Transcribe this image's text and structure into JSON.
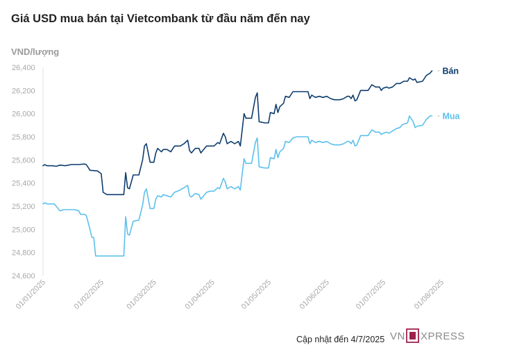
{
  "title": "Giá USD mua bán tại Vietcombank từ đầu năm đến nay",
  "unit_label": "VND/lượng",
  "footer": {
    "updated": "Cập nhật đến 4/7/2025",
    "brand": "VNEXPRESS"
  },
  "colors": {
    "ban": "#0d3c6e",
    "mua": "#5bc0ec",
    "tick_text": "#a8a8a8",
    "logo_accent": "#9f224e"
  },
  "chart_data": {
    "type": "line",
    "ylim": [
      24600,
      26400
    ],
    "yticks": [
      24600,
      24800,
      25000,
      25200,
      25400,
      25600,
      25800,
      26000,
      26200,
      26400
    ],
    "ytick_labels": [
      "24,600",
      "24,800",
      "25,000",
      "25,200",
      "25,400",
      "25,600",
      "25,800",
      "26,000",
      "26,200",
      "26,400"
    ],
    "xticks": [
      "01/01/2025",
      "01/02/2025",
      "01/03/2025",
      "01/04/2025",
      "01/05/2025",
      "01/06/2025",
      "01/07/2025",
      "01/08/2025"
    ],
    "x_range": [
      "2025-01-01",
      "2025-08-01"
    ],
    "grid": false,
    "series": [
      {
        "name": "Bán",
        "points": [
          [
            "2025-01-01",
            25550
          ],
          [
            "2025-01-02",
            25560
          ],
          [
            "2025-01-03",
            25550
          ],
          [
            "2025-01-06",
            25550
          ],
          [
            "2025-01-08",
            25545
          ],
          [
            "2025-01-10",
            25555
          ],
          [
            "2025-01-13",
            25550
          ],
          [
            "2025-01-16",
            25560
          ],
          [
            "2025-01-20",
            25560
          ],
          [
            "2025-01-23",
            25565
          ],
          [
            "2025-01-24",
            25560
          ],
          [
            "2025-01-26",
            25510
          ],
          [
            "2025-01-30",
            25505
          ],
          [
            "2025-02-01",
            25480
          ],
          [
            "2025-02-02",
            25320
          ],
          [
            "2025-02-04",
            25300
          ],
          [
            "2025-02-10",
            25300
          ],
          [
            "2025-02-13",
            25300
          ],
          [
            "2025-02-14",
            25490
          ],
          [
            "2025-02-15",
            25360
          ],
          [
            "2025-02-16",
            25350
          ],
          [
            "2025-02-18",
            25470
          ],
          [
            "2025-02-21",
            25470
          ],
          [
            "2025-02-23",
            25600
          ],
          [
            "2025-02-24",
            25720
          ],
          [
            "2025-02-25",
            25740
          ],
          [
            "2025-02-27",
            25580
          ],
          [
            "2025-02-28",
            25580
          ],
          [
            "2025-03-01",
            25580
          ],
          [
            "2025-03-02",
            25660
          ],
          [
            "2025-03-03",
            25700
          ],
          [
            "2025-03-05",
            25670
          ],
          [
            "2025-03-06",
            25690
          ],
          [
            "2025-03-08",
            25690
          ],
          [
            "2025-03-10",
            25670
          ],
          [
            "2025-03-12",
            25720
          ],
          [
            "2025-03-15",
            25720
          ],
          [
            "2025-03-17",
            25740
          ],
          [
            "2025-03-19",
            25770
          ],
          [
            "2025-03-20",
            25680
          ],
          [
            "2025-03-21",
            25660
          ],
          [
            "2025-03-23",
            25700
          ],
          [
            "2025-03-25",
            25700
          ],
          [
            "2025-03-26",
            25660
          ],
          [
            "2025-03-27",
            25680
          ],
          [
            "2025-03-29",
            25720
          ],
          [
            "2025-03-31",
            25720
          ],
          [
            "2025-04-02",
            25720
          ],
          [
            "2025-04-04",
            25750
          ],
          [
            "2025-04-05",
            25740
          ],
          [
            "2025-04-07",
            25830
          ],
          [
            "2025-04-08",
            25800
          ],
          [
            "2025-04-09",
            25740
          ],
          [
            "2025-04-11",
            25760
          ],
          [
            "2025-04-13",
            25740
          ],
          [
            "2025-04-15",
            25760
          ],
          [
            "2025-04-16",
            25720
          ],
          [
            "2025-04-17",
            25860
          ],
          [
            "2025-04-18",
            26000
          ],
          [
            "2025-04-19",
            25960
          ],
          [
            "2025-04-22",
            25960
          ],
          [
            "2025-04-24",
            26140
          ],
          [
            "2025-04-25",
            26180
          ],
          [
            "2025-04-26",
            25930
          ],
          [
            "2025-04-29",
            25920
          ],
          [
            "2025-05-01",
            25920
          ],
          [
            "2025-05-02",
            26010
          ],
          [
            "2025-05-04",
            26000
          ],
          [
            "2025-05-05",
            26080
          ],
          [
            "2025-05-06",
            26010
          ],
          [
            "2025-05-07",
            26060
          ],
          [
            "2025-05-09",
            26090
          ],
          [
            "2025-05-10",
            26150
          ],
          [
            "2025-05-12",
            26140
          ],
          [
            "2025-05-14",
            26190
          ],
          [
            "2025-05-16",
            26190
          ],
          [
            "2025-05-20",
            26190
          ],
          [
            "2025-05-22",
            26190
          ],
          [
            "2025-05-23",
            26130
          ],
          [
            "2025-05-24",
            26160
          ],
          [
            "2025-05-26",
            26140
          ],
          [
            "2025-05-28",
            26150
          ],
          [
            "2025-05-30",
            26140
          ],
          [
            "2025-06-01",
            26150
          ],
          [
            "2025-06-03",
            26130
          ],
          [
            "2025-06-05",
            26120
          ],
          [
            "2025-06-08",
            26120
          ],
          [
            "2025-06-10",
            26130
          ],
          [
            "2025-06-12",
            26150
          ],
          [
            "2025-06-13",
            26150
          ],
          [
            "2025-06-14",
            26130
          ],
          [
            "2025-06-15",
            26160
          ],
          [
            "2025-06-16",
            26110
          ],
          [
            "2025-06-17",
            26120
          ],
          [
            "2025-06-19",
            26200
          ],
          [
            "2025-06-23",
            26200
          ],
          [
            "2025-06-25",
            26250
          ],
          [
            "2025-06-27",
            26230
          ],
          [
            "2025-06-29",
            26230
          ],
          [
            "2025-06-30",
            26200
          ],
          [
            "2025-07-01",
            26220
          ],
          [
            "2025-07-03",
            26230
          ],
          [
            "2025-07-04",
            26220
          ],
          [
            "2025-07-06",
            26230
          ],
          [
            "2025-07-08",
            26260
          ],
          [
            "2025-07-10",
            26260
          ],
          [
            "2025-07-11",
            26270
          ],
          [
            "2025-07-12",
            26280
          ],
          [
            "2025-07-14",
            26280
          ],
          [
            "2025-07-15",
            26310
          ],
          [
            "2025-07-17",
            26290
          ],
          [
            "2025-07-18",
            26300
          ],
          [
            "2025-07-19",
            26270
          ],
          [
            "2025-07-22",
            26280
          ],
          [
            "2025-07-24",
            26330
          ],
          [
            "2025-07-26",
            26350
          ],
          [
            "2025-07-27",
            26370
          ]
        ]
      },
      {
        "name": "Mua",
        "points": [
          [
            "2025-01-01",
            25220
          ],
          [
            "2025-01-02",
            25230
          ],
          [
            "2025-01-03",
            25220
          ],
          [
            "2025-01-06",
            25220
          ],
          [
            "2025-01-07",
            25220
          ],
          [
            "2025-01-09",
            25180
          ],
          [
            "2025-01-10",
            25160
          ],
          [
            "2025-01-12",
            25170
          ],
          [
            "2025-01-15",
            25170
          ],
          [
            "2025-01-18",
            25170
          ],
          [
            "2025-01-20",
            25160
          ],
          [
            "2025-01-21",
            25130
          ],
          [
            "2025-01-23",
            25130
          ],
          [
            "2025-01-24",
            25120
          ],
          [
            "2025-01-26",
            25000
          ],
          [
            "2025-01-27",
            24930
          ],
          [
            "2025-01-28",
            24930
          ],
          [
            "2025-01-29",
            24770
          ],
          [
            "2025-02-04",
            24770
          ],
          [
            "2025-02-10",
            24770
          ],
          [
            "2025-02-13",
            24770
          ],
          [
            "2025-02-14",
            25110
          ],
          [
            "2025-02-15",
            24960
          ],
          [
            "2025-02-16",
            24950
          ],
          [
            "2025-02-18",
            25070
          ],
          [
            "2025-02-21",
            25080
          ],
          [
            "2025-02-23",
            25210
          ],
          [
            "2025-02-24",
            25320
          ],
          [
            "2025-02-25",
            25350
          ],
          [
            "2025-02-27",
            25180
          ],
          [
            "2025-02-28",
            25180
          ],
          [
            "2025-03-01",
            25180
          ],
          [
            "2025-03-02",
            25260
          ],
          [
            "2025-03-03",
            25290
          ],
          [
            "2025-03-05",
            25280
          ],
          [
            "2025-03-06",
            25300
          ],
          [
            "2025-03-08",
            25290
          ],
          [
            "2025-03-10",
            25280
          ],
          [
            "2025-03-12",
            25320
          ],
          [
            "2025-03-15",
            25340
          ],
          [
            "2025-03-17",
            25360
          ],
          [
            "2025-03-19",
            25380
          ],
          [
            "2025-03-20",
            25290
          ],
          [
            "2025-03-21",
            25280
          ],
          [
            "2025-03-23",
            25310
          ],
          [
            "2025-03-25",
            25300
          ],
          [
            "2025-03-26",
            25260
          ],
          [
            "2025-03-27",
            25280
          ],
          [
            "2025-03-29",
            25320
          ],
          [
            "2025-03-31",
            25330
          ],
          [
            "2025-04-02",
            25330
          ],
          [
            "2025-04-04",
            25360
          ],
          [
            "2025-04-05",
            25350
          ],
          [
            "2025-04-07",
            25440
          ],
          [
            "2025-04-08",
            25410
          ],
          [
            "2025-04-09",
            25350
          ],
          [
            "2025-04-11",
            25370
          ],
          [
            "2025-04-13",
            25350
          ],
          [
            "2025-04-15",
            25370
          ],
          [
            "2025-04-16",
            25340
          ],
          [
            "2025-04-17",
            25480
          ],
          [
            "2025-04-18",
            25610
          ],
          [
            "2025-04-19",
            25570
          ],
          [
            "2025-04-22",
            25570
          ],
          [
            "2025-04-24",
            25750
          ],
          [
            "2025-04-25",
            25790
          ],
          [
            "2025-04-26",
            25540
          ],
          [
            "2025-04-29",
            25530
          ],
          [
            "2025-05-01",
            25530
          ],
          [
            "2025-05-02",
            25620
          ],
          [
            "2025-05-04",
            25610
          ],
          [
            "2025-05-05",
            25690
          ],
          [
            "2025-05-06",
            25620
          ],
          [
            "2025-05-07",
            25670
          ],
          [
            "2025-05-09",
            25700
          ],
          [
            "2025-05-10",
            25760
          ],
          [
            "2025-05-12",
            25750
          ],
          [
            "2025-05-14",
            25790
          ],
          [
            "2025-05-16",
            25800
          ],
          [
            "2025-05-20",
            25800
          ],
          [
            "2025-05-22",
            25800
          ],
          [
            "2025-05-23",
            25740
          ],
          [
            "2025-05-24",
            25770
          ],
          [
            "2025-05-26",
            25750
          ],
          [
            "2025-05-28",
            25760
          ],
          [
            "2025-05-30",
            25750
          ],
          [
            "2025-06-01",
            25760
          ],
          [
            "2025-06-03",
            25740
          ],
          [
            "2025-06-05",
            25730
          ],
          [
            "2025-06-08",
            25730
          ],
          [
            "2025-06-10",
            25740
          ],
          [
            "2025-06-12",
            25760
          ],
          [
            "2025-06-13",
            25760
          ],
          [
            "2025-06-14",
            25740
          ],
          [
            "2025-06-15",
            25770
          ],
          [
            "2025-06-16",
            25720
          ],
          [
            "2025-06-17",
            25730
          ],
          [
            "2025-06-19",
            25810
          ],
          [
            "2025-06-23",
            25810
          ],
          [
            "2025-06-25",
            25860
          ],
          [
            "2025-06-27",
            25840
          ],
          [
            "2025-06-29",
            25840
          ],
          [
            "2025-06-30",
            25820
          ],
          [
            "2025-07-01",
            25830
          ],
          [
            "2025-07-03",
            25840
          ],
          [
            "2025-07-04",
            25830
          ],
          [
            "2025-07-06",
            25850
          ],
          [
            "2025-07-08",
            25870
          ],
          [
            "2025-07-10",
            25880
          ],
          [
            "2025-07-11",
            25900
          ],
          [
            "2025-07-12",
            25910
          ],
          [
            "2025-07-14",
            25920
          ],
          [
            "2025-07-15",
            25980
          ],
          [
            "2025-07-17",
            25930
          ],
          [
            "2025-07-18",
            25880
          ],
          [
            "2025-07-19",
            25890
          ],
          [
            "2025-07-22",
            25900
          ],
          [
            "2025-07-24",
            25950
          ],
          [
            "2025-07-26",
            25980
          ],
          [
            "2025-07-27",
            25980
          ]
        ]
      }
    ]
  }
}
